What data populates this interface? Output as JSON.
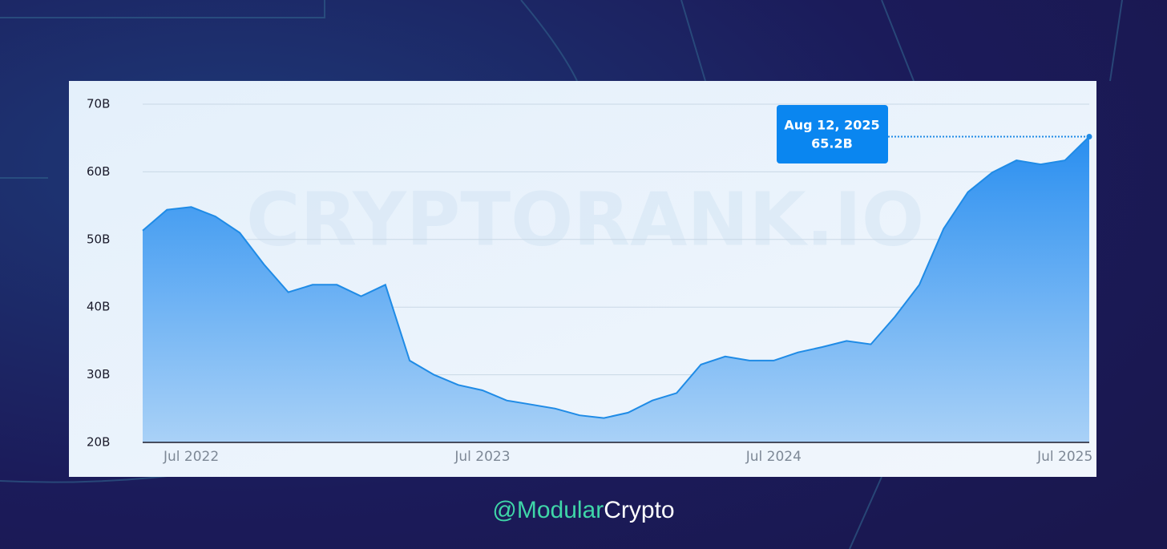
{
  "chart_data": {
    "type": "area",
    "x": [
      "2022-05",
      "2022-06",
      "2022-07",
      "2022-08",
      "2022-09",
      "2022-10",
      "2022-11",
      "2022-12",
      "2023-01",
      "2023-02",
      "2023-03",
      "2023-04",
      "2023-05",
      "2023-06",
      "2023-07",
      "2023-08",
      "2023-09",
      "2023-10",
      "2023-11",
      "2023-12",
      "2024-01",
      "2024-02",
      "2024-03",
      "2024-04",
      "2024-05",
      "2024-06",
      "2024-07",
      "2024-08",
      "2024-09",
      "2024-10",
      "2024-11",
      "2024-12",
      "2025-01",
      "2025-02",
      "2025-03",
      "2025-04",
      "2025-05",
      "2025-06",
      "2025-07",
      "2025-08"
    ],
    "values": [
      51.3,
      54.4,
      54.8,
      53.4,
      51.0,
      46.3,
      42.2,
      43.3,
      43.3,
      41.6,
      43.3,
      32.1,
      30.0,
      28.5,
      27.7,
      26.2,
      25.6,
      25.0,
      24.0,
      23.6,
      24.4,
      26.2,
      27.3,
      31.5,
      32.7,
      32.1,
      32.1,
      33.3,
      34.1,
      35.0,
      34.5,
      38.6,
      43.3,
      51.6,
      57.0,
      59.9,
      61.7,
      61.1,
      61.7,
      65.2
    ],
    "color": "#1f8be6",
    "xlim": [
      "2022-05",
      "2025-08"
    ],
    "xticks": [
      {
        "value": "2022-07",
        "label": "Jul 2022"
      },
      {
        "value": "2023-07",
        "label": "Jul 2023"
      },
      {
        "value": "2024-07",
        "label": "Jul 2024"
      },
      {
        "value": "2025-07",
        "label": "Jul 2025"
      }
    ],
    "ylim": [
      20,
      70
    ],
    "yticks": [
      {
        "value": 20,
        "label": "20B"
      },
      {
        "value": 30,
        "label": "30B"
      },
      {
        "value": 40,
        "label": "40B"
      },
      {
        "value": 50,
        "label": "50B"
      },
      {
        "value": 60,
        "label": "60B"
      },
      {
        "value": 70,
        "label": "70B"
      }
    ],
    "grid": true,
    "annotation": {
      "date": "Aug 12, 2025",
      "value_label": "65.2B"
    },
    "watermark": "CRYPTORANK.IO"
  },
  "credit": {
    "highlight": "@Modular",
    "rest": "Crypto"
  }
}
